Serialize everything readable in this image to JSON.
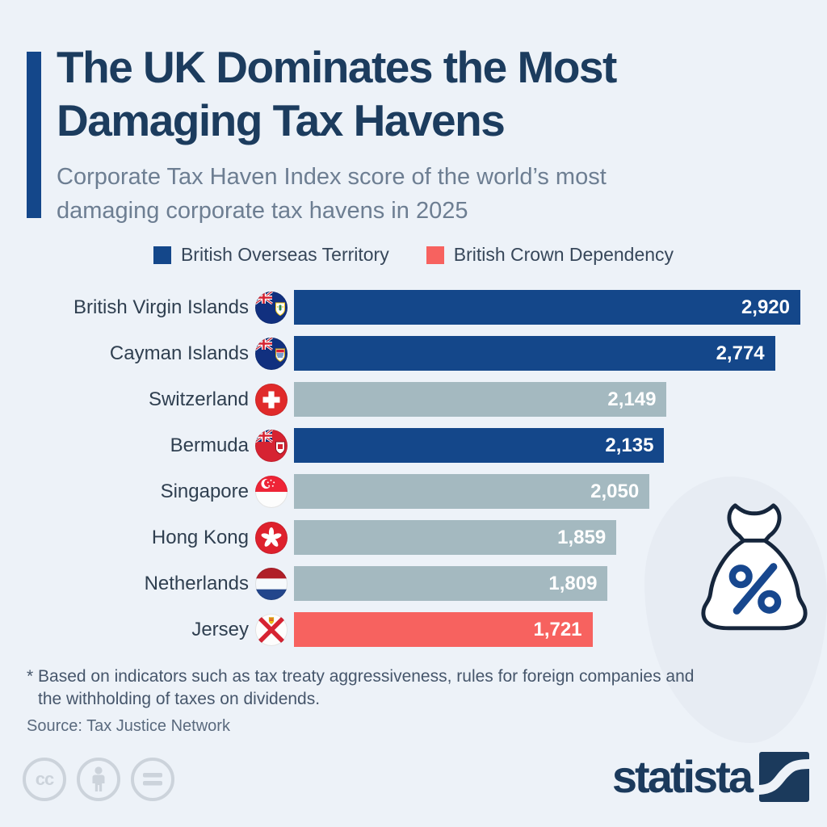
{
  "header": {
    "title_line1": "The UK Dominates the Most",
    "title_line2": "Damaging Tax Havens",
    "subtitle_line1": "Corporate Tax Haven Index score of the world’s most",
    "subtitle_line2": "damaging corporate tax havens in 2025"
  },
  "legend": {
    "items": [
      {
        "label": "British Overseas Territory",
        "color": "#14478a"
      },
      {
        "label": "British Crown Dependency",
        "color": "#f7625f"
      }
    ]
  },
  "chart_data": {
    "type": "bar",
    "orientation": "horizontal",
    "title": "Corporate Tax Haven Index score of the world's most damaging corporate tax havens in 2025",
    "xlabel": "Corporate Tax Haven Index score",
    "xmax": 2920,
    "grid": false,
    "rows": [
      {
        "country": "British Virgin Islands",
        "value": 2920,
        "value_label": "2,920",
        "category": "British Overseas Territory",
        "flag": "british-virgin-islands"
      },
      {
        "country": "Cayman Islands",
        "value": 2774,
        "value_label": "2,774",
        "category": "British Overseas Territory",
        "flag": "cayman-islands"
      },
      {
        "country": "Switzerland",
        "value": 2149,
        "value_label": "2,149",
        "category": "Other",
        "flag": "switzerland"
      },
      {
        "country": "Bermuda",
        "value": 2135,
        "value_label": "2,135",
        "category": "British Overseas Territory",
        "flag": "bermuda"
      },
      {
        "country": "Singapore",
        "value": 2050,
        "value_label": "2,050",
        "category": "Other",
        "flag": "singapore"
      },
      {
        "country": "Hong Kong",
        "value": 1859,
        "value_label": "1,859",
        "category": "Other",
        "flag": "hong-kong"
      },
      {
        "country": "Netherlands",
        "value": 1809,
        "value_label": "1,809",
        "category": "Other",
        "flag": "netherlands"
      },
      {
        "country": "Jersey",
        "value": 1721,
        "value_label": "1,721",
        "category": "British Crown Dependency",
        "flag": "jersey"
      }
    ],
    "colors": {
      "British Overseas Territory": "#14478a",
      "British Crown Dependency": "#f7625f",
      "Other": "#a4b9c0"
    }
  },
  "footnote": {
    "line1": "* Based on indicators such as tax treaty aggressiveness, rules for foreign companies and",
    "line2": "the withholding of taxes on dividends."
  },
  "source": "Source: Tax Justice Network",
  "footer": {
    "brand": "statista",
    "cc_label": "cc",
    "license_icons": [
      "cc-icon",
      "attribution-person-icon",
      "equals-icon"
    ]
  },
  "decorative_icons": [
    "money-bag-percent-icon",
    "statista-logo-mark"
  ],
  "colors": {
    "background": "#edf2f8",
    "title": "#1c3c5e",
    "subtitle": "#6d7e92",
    "bar_navy": "#14478a",
    "bar_gray": "#a4b9c0",
    "bar_coral": "#f7625f",
    "accent_bar": "#14478a",
    "brand_navy": "#1b3a5c"
  }
}
